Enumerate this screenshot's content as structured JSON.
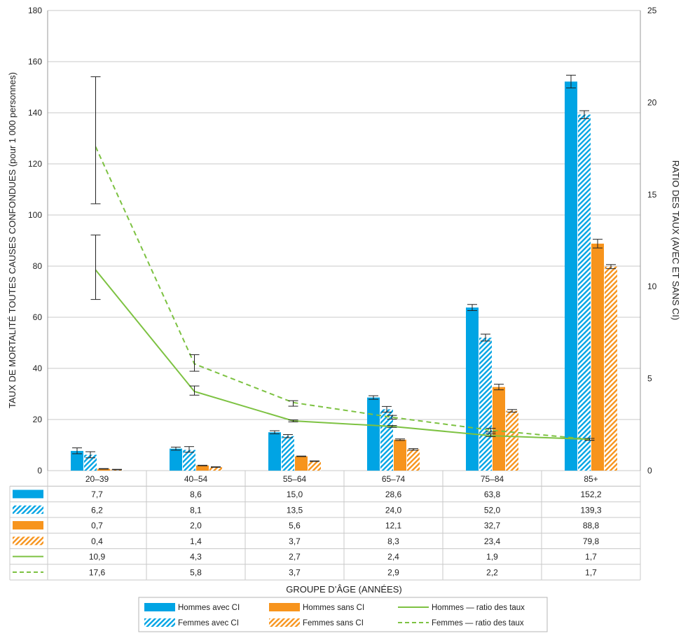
{
  "chart_data": {
    "type": "bar",
    "categories": [
      "20–39",
      "40–54",
      "55–64",
      "65–74",
      "75–84",
      "85+"
    ],
    "series": [
      {
        "name": "Hommes avec CI",
        "kind": "bar",
        "style": "solid",
        "color": "#00a4e4",
        "values": [
          7.7,
          8.6,
          15.0,
          28.6,
          63.8,
          152.2
        ],
        "values_label": [
          "7,7",
          "8,6",
          "15,0",
          "28,6",
          "63,8",
          "152,2"
        ],
        "ci": [
          [
            6.6,
            8.9
          ],
          [
            8.0,
            9.2
          ],
          [
            14.4,
            15.6
          ],
          [
            27.9,
            29.3
          ],
          [
            62.6,
            65.0
          ],
          [
            149.7,
            154.7
          ]
        ]
      },
      {
        "name": "Femmes avec CI",
        "kind": "bar",
        "style": "hatched",
        "color": "#00a4e4",
        "values": [
          6.2,
          8.1,
          13.5,
          24.0,
          52.0,
          139.3
        ],
        "values_label": [
          "6,2",
          "8,1",
          "13,5",
          "24,0",
          "52,0",
          "139,3"
        ],
        "ci": [
          [
            5.0,
            7.4
          ],
          [
            7.2,
            9.4
          ],
          [
            12.9,
            14.1
          ],
          [
            22.9,
            25.1
          ],
          [
            50.7,
            53.4
          ],
          [
            137.7,
            140.8
          ]
        ]
      },
      {
        "name": "Hommes sans CI",
        "kind": "bar",
        "style": "solid",
        "color": "#f7941d",
        "values": [
          0.7,
          2.0,
          5.6,
          12.1,
          32.7,
          88.8
        ],
        "values_label": [
          "0,7",
          "2,0",
          "5,6",
          "12,1",
          "32,7",
          "88,8"
        ],
        "ci": [
          [
            0.6,
            0.8
          ],
          [
            1.9,
            2.1
          ],
          [
            5.5,
            5.7
          ],
          [
            11.8,
            12.4
          ],
          [
            31.6,
            33.8
          ],
          [
            87.1,
            90.5
          ]
        ]
      },
      {
        "name": "Femmes sans CI",
        "kind": "bar",
        "style": "hatched",
        "color": "#f7941d",
        "values": [
          0.4,
          1.4,
          3.7,
          8.3,
          23.4,
          79.8
        ],
        "values_label": [
          "0,4",
          "1,4",
          "3,7",
          "8,3",
          "23,4",
          "79,8"
        ],
        "ci": [
          [
            0.3,
            0.5
          ],
          [
            1.3,
            1.5
          ],
          [
            3.6,
            3.8
          ],
          [
            8.0,
            8.6
          ],
          [
            22.9,
            23.9
          ],
          [
            79.0,
            80.6
          ]
        ]
      },
      {
        "name": "Hommes — ratio des taux",
        "kind": "line",
        "axis": "right",
        "style": "solid",
        "color": "#7dc242",
        "values": [
          10.9,
          4.3,
          2.7,
          2.4,
          1.9,
          1.7
        ],
        "values_label": [
          "10,9",
          "4,3",
          "2,7",
          "2,4",
          "1,9",
          "1,7"
        ],
        "ci": [
          [
            9.3,
            12.8
          ],
          [
            4.1,
            4.6
          ],
          [
            2.65,
            2.75
          ],
          [
            2.35,
            2.45
          ],
          [
            1.85,
            2.0
          ],
          [
            1.65,
            1.75
          ]
        ]
      },
      {
        "name": "Femmes — ratio des taux",
        "kind": "line",
        "axis": "right",
        "style": "dashed",
        "color": "#7dc242",
        "values": [
          17.6,
          5.8,
          3.7,
          2.9,
          2.2,
          1.7
        ],
        "values_label": [
          "17,6",
          "5,8",
          "3,7",
          "2,9",
          "2,2",
          "1,7"
        ],
        "ci": [
          [
            14.5,
            21.4
          ],
          [
            5.4,
            6.3
          ],
          [
            3.5,
            3.8
          ],
          [
            2.8,
            3.0
          ],
          [
            2.1,
            2.3
          ],
          [
            1.65,
            1.75
          ]
        ]
      }
    ],
    "ylabel": "TAUX DE MORTALITÉ TOUTES CAUSES CONFONDUES  (pour 1 000 personnes)",
    "y2label": "RATIO DES TAUX (AVEC ET SANS CI)",
    "xlabel": "GROUPE D’ÂGE (ANNÉES)",
    "ylim": [
      0,
      180
    ],
    "y2lim": [
      0,
      25
    ],
    "yticks": [
      0,
      20,
      40,
      60,
      80,
      100,
      120,
      140,
      160,
      180
    ],
    "y2ticks": [
      0,
      5,
      10,
      15,
      20,
      25
    ],
    "grid": true,
    "legend_position": "bottom-center",
    "data_table": true
  }
}
